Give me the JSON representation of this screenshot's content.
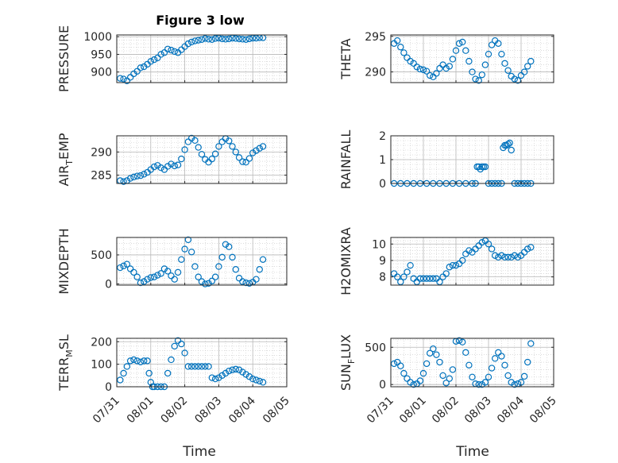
{
  "chart_data": {
    "type": "scatter",
    "title": "Figure 3 low",
    "x_ticks": [
      "07/31",
      "08/01",
      "08/02",
      "08/03",
      "08/04",
      "08/05"
    ],
    "x_range": [
      0,
      5
    ],
    "xlabel": "Time",
    "marker_color": "#0072BD",
    "grid": true,
    "panels": [
      {
        "id": "pressure",
        "ylabel": "PRESSURE",
        "ylim": [
          870,
          1005
        ],
        "yticks": [
          900,
          950,
          1000
        ],
        "x": [
          0.1,
          0.2,
          0.3,
          0.4,
          0.5,
          0.6,
          0.7,
          0.8,
          0.9,
          1.0,
          1.1,
          1.2,
          1.3,
          1.4,
          1.5,
          1.6,
          1.7,
          1.8,
          1.9,
          2.0,
          2.1,
          2.2,
          2.3,
          2.4,
          2.5,
          2.6,
          2.7,
          2.8,
          2.9,
          3.0,
          3.1,
          3.2,
          3.3,
          3.4,
          3.5,
          3.6,
          3.7,
          3.8,
          3.9,
          4.0,
          4.1,
          4.2,
          4.3
        ],
        "y": [
          882,
          880,
          875,
          885,
          895,
          902,
          912,
          915,
          922,
          930,
          935,
          940,
          950,
          955,
          965,
          962,
          958,
          955,
          963,
          972,
          980,
          985,
          988,
          990,
          992,
          995,
          993,
          992,
          995,
          996,
          994,
          993,
          994,
          996,
          995,
          994,
          993,
          992,
          994,
          996,
          996,
          997,
          997
        ]
      },
      {
        "id": "theta",
        "ylabel": "THETA",
        "ylim": [
          288.5,
          295.2
        ],
        "yticks": [
          290,
          295
        ],
        "x": [
          0.1,
          0.2,
          0.3,
          0.4,
          0.5,
          0.6,
          0.7,
          0.8,
          0.9,
          1.0,
          1.1,
          1.2,
          1.3,
          1.4,
          1.5,
          1.6,
          1.7,
          1.8,
          1.9,
          2.0,
          2.1,
          2.2,
          2.3,
          2.4,
          2.5,
          2.6,
          2.7,
          2.8,
          2.9,
          3.0,
          3.1,
          3.2,
          3.3,
          3.4,
          3.5,
          3.6,
          3.7,
          3.8,
          3.9,
          4.0,
          4.1,
          4.2,
          4.3
        ],
        "y": [
          294,
          294.4,
          293.5,
          292.7,
          292,
          291.5,
          291.2,
          290.7,
          290.4,
          290.3,
          290.1,
          289.5,
          289.3,
          289.8,
          290.5,
          291,
          290.5,
          290.8,
          291.8,
          293,
          294,
          294.2,
          293,
          291.5,
          290,
          289,
          288.8,
          289.6,
          291,
          292.5,
          293.8,
          294.4,
          294,
          292.5,
          291.2,
          290.2,
          289.4,
          289,
          288.8,
          289.5,
          290,
          290.8,
          291.5
        ]
      },
      {
        "id": "air_temp",
        "ylabel": "AIR",
        "ylabel_sub": "T",
        "ylabel_tail": "EMP",
        "ylim": [
          283.2,
          293.5
        ],
        "yticks": [
          285,
          290
        ],
        "x": [
          0.1,
          0.2,
          0.3,
          0.4,
          0.5,
          0.6,
          0.7,
          0.8,
          0.9,
          1.0,
          1.1,
          1.2,
          1.3,
          1.4,
          1.5,
          1.6,
          1.7,
          1.8,
          1.9,
          2.0,
          2.1,
          2.2,
          2.3,
          2.4,
          2.5,
          2.6,
          2.7,
          2.8,
          2.9,
          3.0,
          3.1,
          3.2,
          3.3,
          3.4,
          3.5,
          3.6,
          3.7,
          3.8,
          3.9,
          4.0,
          4.1,
          4.2,
          4.3
        ],
        "y": [
          283.8,
          283.6,
          283.8,
          284.3,
          284.6,
          284.8,
          284.9,
          285.2,
          285.6,
          286.2,
          286.8,
          287.1,
          286.6,
          286.2,
          286.9,
          287.4,
          287,
          287.2,
          288.5,
          290.5,
          292.2,
          293,
          292.5,
          291,
          289.5,
          288.4,
          287.8,
          288.5,
          289.6,
          291.2,
          292.2,
          292.9,
          292.4,
          291.2,
          290,
          288.8,
          287.9,
          287.8,
          288.6,
          289.8,
          290.3,
          290.8,
          291.2
        ]
      },
      {
        "id": "rainfall",
        "ylabel": "RAINFALL",
        "ylim": [
          0,
          2
        ],
        "yticks": [
          0,
          1,
          2
        ],
        "x": [
          0.1,
          0.3,
          0.5,
          0.7,
          0.9,
          1.1,
          1.3,
          1.5,
          1.7,
          1.9,
          2.1,
          2.3,
          2.5,
          2.6,
          2.65,
          2.7,
          2.75,
          2.8,
          2.85,
          2.9,
          3.0,
          3.1,
          3.2,
          3.3,
          3.4,
          3.45,
          3.5,
          3.55,
          3.6,
          3.65,
          3.7,
          3.8,
          3.9,
          4.0,
          4.1,
          4.2,
          4.3
        ],
        "y": [
          0,
          0,
          0,
          0,
          0,
          0,
          0,
          0,
          0,
          0,
          0,
          0,
          0,
          0,
          0.7,
          0.7,
          0.6,
          0.7,
          0.7,
          0.7,
          0,
          0,
          0,
          0,
          0,
          1.5,
          1.6,
          1.6,
          1.65,
          1.7,
          1.4,
          0,
          0,
          0,
          0,
          0,
          0
        ]
      },
      {
        "id": "mixdepth",
        "ylabel": "MIXDEPTH",
        "ylim": [
          -20,
          800
        ],
        "yticks": [
          0,
          500
        ],
        "x": [
          0.1,
          0.2,
          0.3,
          0.4,
          0.5,
          0.6,
          0.7,
          0.8,
          0.9,
          1.0,
          1.1,
          1.2,
          1.3,
          1.4,
          1.5,
          1.6,
          1.7,
          1.8,
          1.9,
          2.0,
          2.1,
          2.2,
          2.3,
          2.4,
          2.5,
          2.6,
          2.7,
          2.8,
          2.9,
          3.0,
          3.1,
          3.2,
          3.3,
          3.4,
          3.5,
          3.6,
          3.7,
          3.8,
          3.9,
          4.0,
          4.1,
          4.2,
          4.3
        ],
        "y": [
          280,
          310,
          340,
          260,
          200,
          120,
          20,
          40,
          80,
          110,
          120,
          150,
          180,
          260,
          220,
          140,
          80,
          200,
          420,
          600,
          760,
          550,
          300,
          120,
          40,
          0,
          10,
          50,
          120,
          300,
          460,
          680,
          640,
          460,
          250,
          100,
          40,
          20,
          10,
          30,
          80,
          250,
          420
        ]
      },
      {
        "id": "h2omixra",
        "ylabel": "H2OMIXRA",
        "ylim": [
          7.5,
          10.4
        ],
        "yticks": [
          8,
          9,
          10
        ],
        "x": [
          0.1,
          0.2,
          0.3,
          0.4,
          0.5,
          0.6,
          0.7,
          0.8,
          0.9,
          1.0,
          1.1,
          1.2,
          1.3,
          1.4,
          1.5,
          1.6,
          1.7,
          1.8,
          1.9,
          2.0,
          2.1,
          2.2,
          2.3,
          2.4,
          2.5,
          2.6,
          2.7,
          2.8,
          2.9,
          3.0,
          3.1,
          3.2,
          3.3,
          3.4,
          3.5,
          3.6,
          3.7,
          3.8,
          3.9,
          4.0,
          4.1,
          4.2,
          4.3
        ],
        "y": [
          8.2,
          8,
          7.7,
          8,
          8.3,
          8.7,
          7.9,
          7.7,
          7.9,
          7.9,
          7.9,
          7.9,
          7.9,
          7.9,
          7.7,
          8,
          8.2,
          8.6,
          8.7,
          8.7,
          8.8,
          9,
          9.4,
          9.6,
          9.5,
          9.7,
          9.9,
          10.1,
          10.2,
          10,
          9.7,
          9.3,
          9.2,
          9.3,
          9.2,
          9.2,
          9.2,
          9.3,
          9.2,
          9.3,
          9.5,
          9.7,
          9.8
        ]
      },
      {
        "id": "terr_msl",
        "ylabel": "TERR",
        "ylabel_sub": "M",
        "ylabel_tail": "SL",
        "ylim": [
          0,
          215
        ],
        "yticks": [
          0,
          100,
          200
        ],
        "x": [
          0.1,
          0.2,
          0.3,
          0.4,
          0.5,
          0.6,
          0.7,
          0.8,
          0.9,
          0.95,
          1.0,
          1.05,
          1.1,
          1.2,
          1.3,
          1.4,
          1.5,
          1.6,
          1.7,
          1.8,
          1.9,
          2.0,
          2.1,
          2.2,
          2.3,
          2.4,
          2.5,
          2.6,
          2.7,
          2.8,
          2.9,
          3.0,
          3.1,
          3.2,
          3.3,
          3.4,
          3.5,
          3.6,
          3.7,
          3.8,
          3.9,
          4.0,
          4.1,
          4.2,
          4.3
        ],
        "y": [
          30,
          60,
          90,
          115,
          120,
          115,
          110,
          115,
          115,
          60,
          20,
          0,
          0,
          0,
          0,
          0,
          60,
          120,
          180,
          205,
          190,
          150,
          90,
          90,
          90,
          90,
          90,
          90,
          90,
          40,
          35,
          40,
          50,
          60,
          70,
          75,
          78,
          75,
          65,
          55,
          45,
          35,
          30,
          25,
          20
        ]
      },
      {
        "id": "sun_flux",
        "ylabel": "SUN",
        "ylabel_sub": "F",
        "ylabel_tail": "LUX",
        "ylim": [
          -30,
          620
        ],
        "yticks": [
          0,
          500
        ],
        "x": [
          0.1,
          0.2,
          0.3,
          0.4,
          0.5,
          0.6,
          0.7,
          0.8,
          0.9,
          1.0,
          1.1,
          1.2,
          1.3,
          1.4,
          1.5,
          1.6,
          1.7,
          1.8,
          1.9,
          2.0,
          2.1,
          2.2,
          2.3,
          2.4,
          2.5,
          2.6,
          2.7,
          2.8,
          2.9,
          3.0,
          3.1,
          3.2,
          3.3,
          3.4,
          3.5,
          3.6,
          3.7,
          3.8,
          3.9,
          4.0,
          4.1,
          4.2,
          4.3
        ],
        "y": [
          280,
          300,
          250,
          150,
          80,
          30,
          0,
          10,
          50,
          150,
          280,
          420,
          480,
          400,
          300,
          120,
          20,
          80,
          200,
          580,
          590,
          570,
          430,
          260,
          100,
          10,
          0,
          0,
          30,
          100,
          220,
          350,
          430,
          380,
          260,
          120,
          30,
          0,
          10,
          30,
          110,
          300,
          550
        ]
      }
    ]
  }
}
